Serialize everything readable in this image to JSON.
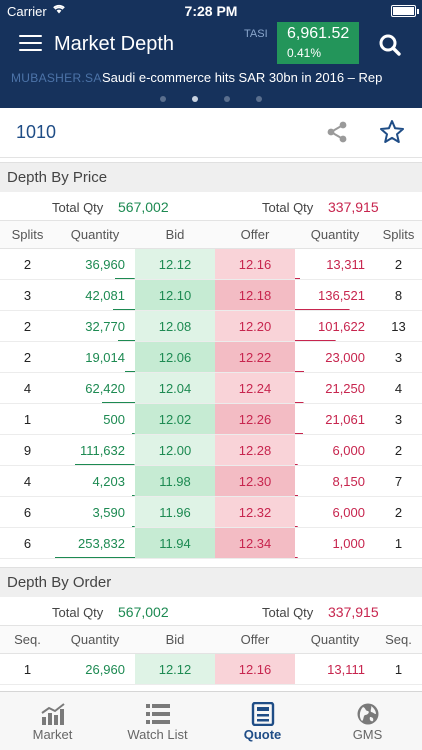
{
  "status_bar": {
    "carrier": "Carrier",
    "time": "7:28 PM"
  },
  "header": {
    "title": "Market Depth",
    "index_label": "TASI",
    "index_value": "6,961.52",
    "index_change": "0.41%",
    "index_color": "#23955a",
    "bar_color": "#16325c"
  },
  "ticker": {
    "source": "MUBASHER.SA",
    "headline": "Saudi e-commerce hits SAR 30bn in 2016 – Rep",
    "pages": 4,
    "active_page": 2
  },
  "symbol": {
    "code": "1010"
  },
  "depth_by_price": {
    "title": "Depth By Price",
    "bid_total_label": "Total Qty",
    "bid_total": "567,002",
    "offer_total_label": "Total Qty",
    "offer_total": "337,915",
    "columns": [
      "Splits",
      "Quantity",
      "Bid",
      "Offer",
      "Quantity",
      "Splits"
    ],
    "rows": [
      {
        "bid_splits": "2",
        "bid_qty": "36,960",
        "bid": "12.12",
        "offer": "12.16",
        "offer_qty": "13,311",
        "offer_splits": "2",
        "bid_share": 0.146,
        "offer_share": 0.039
      },
      {
        "bid_splits": "3",
        "bid_qty": "42,081",
        "bid": "12.10",
        "offer": "12.18",
        "offer_qty": "136,521",
        "offer_splits": "8",
        "bid_share": 0.166,
        "offer_share": 0.404
      },
      {
        "bid_splits": "2",
        "bid_qty": "32,770",
        "bid": "12.08",
        "offer": "12.20",
        "offer_qty": "101,622",
        "offer_splits": "13",
        "bid_share": 0.129,
        "offer_share": 0.301
      },
      {
        "bid_splits": "2",
        "bid_qty": "19,014",
        "bid": "12.06",
        "offer": "12.22",
        "offer_qty": "23,000",
        "offer_splits": "3",
        "bid_share": 0.075,
        "offer_share": 0.068
      },
      {
        "bid_splits": "4",
        "bid_qty": "62,420",
        "bid": "12.04",
        "offer": "12.24",
        "offer_qty": "21,250",
        "offer_splits": "4",
        "bid_share": 0.246,
        "offer_share": 0.063
      },
      {
        "bid_splits": "1",
        "bid_qty": "500",
        "bid": "12.02",
        "offer": "12.26",
        "offer_qty": "21,061",
        "offer_splits": "3",
        "bid_share": 0.002,
        "offer_share": 0.062
      },
      {
        "bid_splits": "9",
        "bid_qty": "111,632",
        "bid": "12.00",
        "offer": "12.28",
        "offer_qty": "6,000",
        "offer_splits": "2",
        "bid_share": 0.441,
        "offer_share": 0.018
      },
      {
        "bid_splits": "4",
        "bid_qty": "4,203",
        "bid": "11.98",
        "offer": "12.30",
        "offer_qty": "8,150",
        "offer_splits": "7",
        "bid_share": 0.017,
        "offer_share": 0.024
      },
      {
        "bid_splits": "6",
        "bid_qty": "3,590",
        "bid": "11.96",
        "offer": "12.32",
        "offer_qty": "6,000",
        "offer_splits": "2",
        "bid_share": 0.014,
        "offer_share": 0.018
      },
      {
        "bid_splits": "6",
        "bid_qty": "253,832",
        "bid": "11.94",
        "offer": "12.34",
        "offer_qty": "1,000",
        "offer_splits": "1",
        "bid_share": 1.0,
        "offer_share": 0.003
      }
    ]
  },
  "depth_by_order": {
    "title": "Depth By Order",
    "bid_total_label": "Total Qty",
    "bid_total": "567,002",
    "offer_total_label": "Total Qty",
    "offer_total": "337,915",
    "columns": [
      "Seq.",
      "Quantity",
      "Bid",
      "Offer",
      "Quantity",
      "Seq."
    ],
    "rows": [
      {
        "bid_seq": "1",
        "bid_qty": "26,960",
        "bid": "12.12",
        "offer": "12.16",
        "offer_qty": "13,111",
        "offer_seq": "1"
      }
    ]
  },
  "colors": {
    "bid_text": "#1d8a52",
    "offer_text": "#c7254e",
    "bid_cell": [
      "#dff3e6",
      "#c6ebd3"
    ],
    "offer_cell": [
      "#f9d3d8",
      "#f3bcc4"
    ]
  },
  "tabs": [
    {
      "label": "Market",
      "icon": "chart-icon"
    },
    {
      "label": "Watch List",
      "icon": "list-icon"
    },
    {
      "label": "Quote",
      "icon": "quote-icon",
      "active": true
    },
    {
      "label": "GMS",
      "icon": "globe-icon"
    }
  ]
}
